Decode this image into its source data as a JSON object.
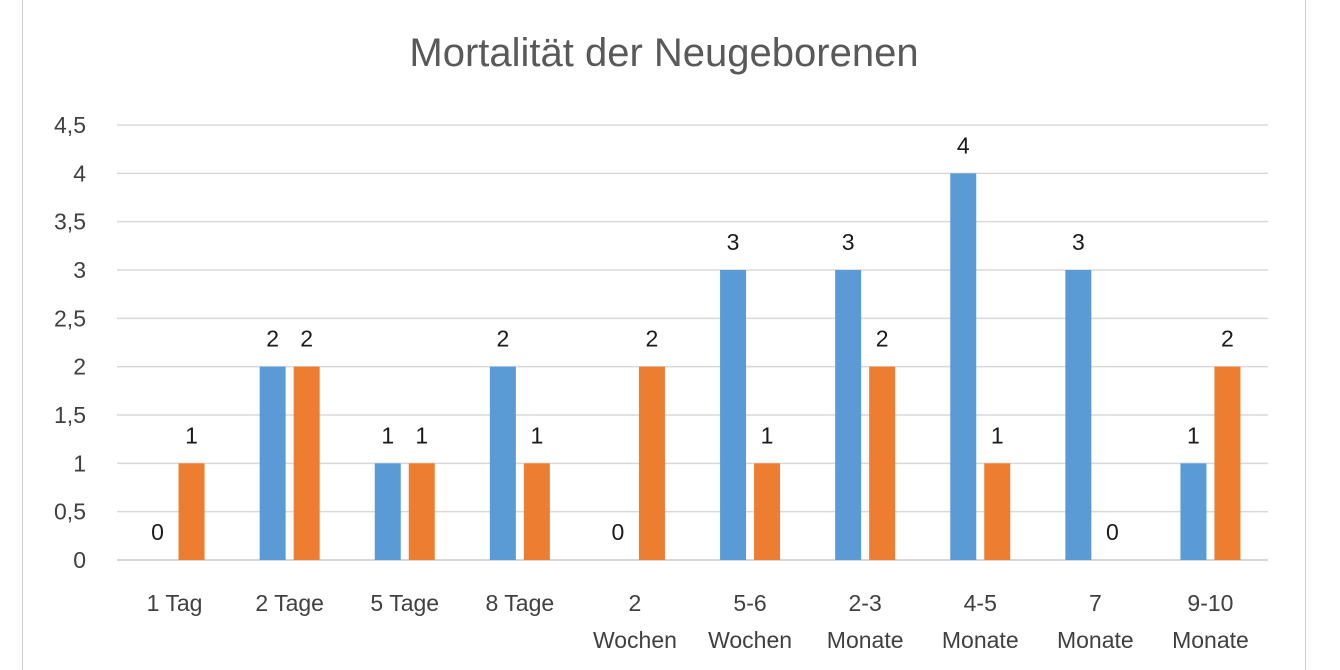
{
  "chart_data": {
    "type": "bar",
    "title": "Mortalität der Neugeborenen",
    "categories": [
      [
        "1 Tag"
      ],
      [
        "2 Tage"
      ],
      [
        "5 Tage"
      ],
      [
        "8 Tage"
      ],
      [
        "2",
        "Wochen"
      ],
      [
        "5-6",
        "Wochen"
      ],
      [
        "2-3",
        "Monate"
      ],
      [
        "4-5",
        "Monate"
      ],
      [
        "7",
        "Monate"
      ],
      [
        "9-10",
        "Monate"
      ]
    ],
    "series": [
      {
        "values": [
          0,
          2,
          1,
          2,
          0,
          3,
          3,
          4,
          3,
          1
        ],
        "color": "#5B9BD5"
      },
      {
        "values": [
          1,
          2,
          1,
          1,
          2,
          1,
          2,
          1,
          0,
          2
        ],
        "color": "#ED7D31"
      }
    ],
    "yticks": [
      "0",
      "0,5",
      "1",
      "1,5",
      "2",
      "2,5",
      "3",
      "3,5",
      "4",
      "4,5"
    ],
    "ylim": [
      0,
      4.5
    ],
    "grid": true,
    "legend": "none",
    "data_labels": true
  }
}
